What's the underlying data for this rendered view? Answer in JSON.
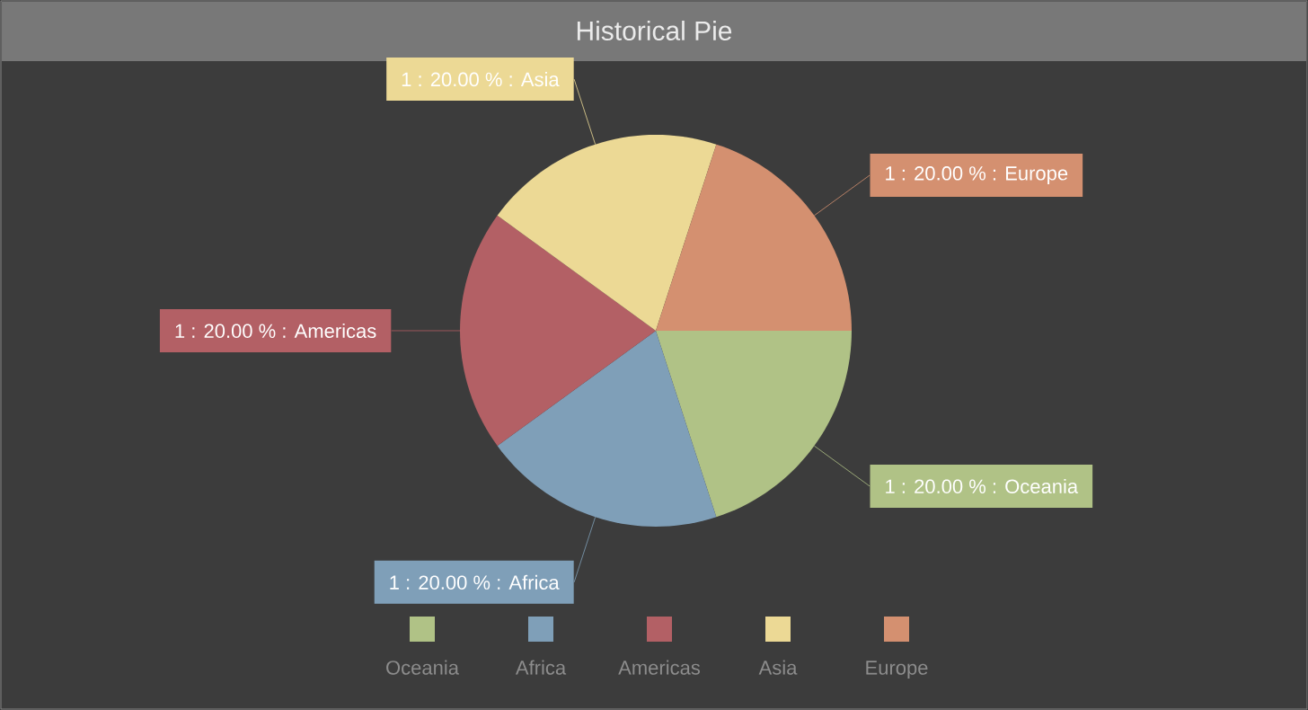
{
  "chart_data": {
    "type": "pie",
    "title": "Historical Pie",
    "categories": [
      "Oceania",
      "Africa",
      "Americas",
      "Asia",
      "Europe"
    ],
    "values": [
      1,
      1,
      1,
      1,
      1
    ],
    "colors": [
      "#b0c286",
      "#7f9fb8",
      "#b36065",
      "#ecd995",
      "#d49070"
    ],
    "value_labels": [
      "1 : 20.00 % : Oceania",
      "1 : 20.00 % : Africa",
      "1 : 20.00 % : Americas",
      "1 : 20.00 % : Asia",
      "1 : 20.00 % : Europe"
    ],
    "legend": "bottom"
  }
}
